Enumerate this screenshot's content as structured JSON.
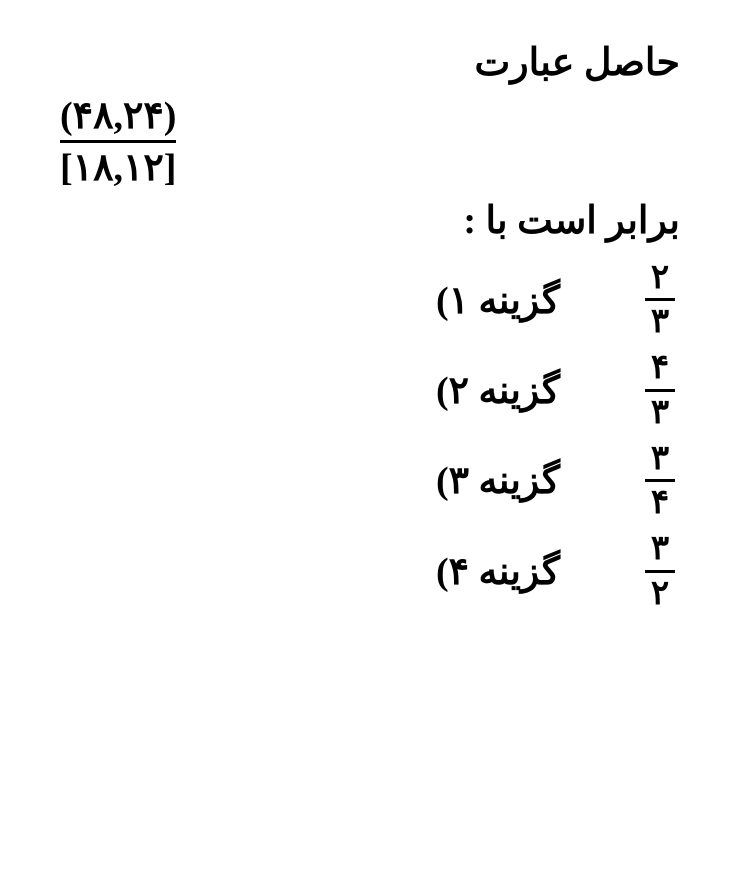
{
  "question": {
    "header": "حاصل عبارت",
    "expression": {
      "numerator": "(۴۸,۲۴)",
      "denominator": "[۱۸,۱۲]"
    },
    "footer": "برابر است با :"
  },
  "options": [
    {
      "label": "گزینه ۱)",
      "fraction": {
        "num": "۲",
        "den": "۳"
      }
    },
    {
      "label": "گزینه ۲)",
      "fraction": {
        "num": "۴",
        "den": "۳"
      }
    },
    {
      "label": "گزینه ۳)",
      "fraction": {
        "num": "۳",
        "den": "۴"
      }
    },
    {
      "label": "گزینه ۴)",
      "fraction": {
        "num": "۳",
        "den": "۲"
      }
    }
  ],
  "style": {
    "background": "#ffffff",
    "text_color": "#000000",
    "font_family": "Times New Roman, serif",
    "header_fontsize": 38,
    "option_label_fontsize": 38,
    "option_value_fontsize": 34,
    "fraction_rule_thickness": 3
  }
}
